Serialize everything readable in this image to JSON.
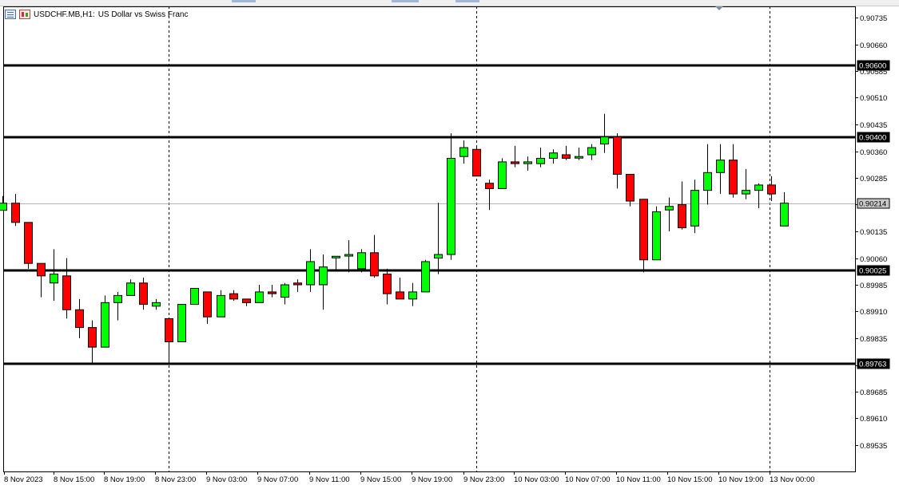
{
  "title": {
    "symbol": "USDCHF.MB,H1:",
    "description": "US Dollar vs Swiss Franc"
  },
  "icons": [
    "list-icon",
    "candlestick-icon",
    "scroll-marker-icon"
  ],
  "colors": {
    "background": "#ffffff",
    "bull": "#00ff00",
    "bear": "#ff0000",
    "wick": "#000000",
    "line": "#000000",
    "bid_line": "#b4b4b4"
  },
  "chart_data": {
    "type": "candlestick",
    "timeframe": "H1",
    "yticks": [
      "0.90735",
      "0.90660",
      "0.90585",
      "0.90510",
      "0.90435",
      "0.90360",
      "0.90285",
      "0.90210",
      "0.90135",
      "0.90060",
      "0.89985",
      "0.89910",
      "0.89835",
      "0.89760",
      "0.89685",
      "0.89610",
      "0.89535"
    ],
    "xticks": [
      "8 Nov 2023",
      "8 Nov 15:00",
      "8 Nov 19:00",
      "8 Nov 23:00",
      "9 Nov 03:00",
      "9 Nov 07:00",
      "9 Nov 11:00",
      "9 Nov 15:00",
      "9 Nov 19:00",
      "9 Nov 23:00",
      "10 Nov 03:00",
      "10 Nov 07:00",
      "10 Nov 11:00",
      "10 Nov 15:00",
      "10 Nov 19:00",
      "13 Nov 00:00"
    ],
    "horizontal_lines": [
      {
        "price": 0.906,
        "label": "0.90600"
      },
      {
        "price": 0.904,
        "label": "0.90400"
      },
      {
        "price": 0.90025,
        "label": "0.90025"
      },
      {
        "price": 0.89763,
        "label": "0.89763"
      }
    ],
    "bid_line": {
      "price": 0.90214,
      "label": "0.90214"
    },
    "period_separators": [
      "8 Nov 23:00",
      "9 Nov 23:00",
      "13 Nov 00:00"
    ],
    "candles": [
      {
        "o": 0.90194,
        "h": 0.90234,
        "l": 0.90194,
        "c": 0.90214
      },
      {
        "o": 0.90214,
        "h": 0.9024,
        "l": 0.9015,
        "c": 0.9016
      },
      {
        "o": 0.9016,
        "h": 0.9016,
        "l": 0.9003,
        "c": 0.90045
      },
      {
        "o": 0.90045,
        "h": 0.90045,
        "l": 0.8995,
        "c": 0.9001
      },
      {
        "o": 0.8999,
        "h": 0.90085,
        "l": 0.8994,
        "c": 0.90015
      },
      {
        "o": 0.9001,
        "h": 0.9006,
        "l": 0.8989,
        "c": 0.89915
      },
      {
        "o": 0.89915,
        "h": 0.89945,
        "l": 0.89835,
        "c": 0.89865
      },
      {
        "o": 0.89865,
        "h": 0.89885,
        "l": 0.89765,
        "c": 0.8981
      },
      {
        "o": 0.8981,
        "h": 0.89955,
        "l": 0.8981,
        "c": 0.89935
      },
      {
        "o": 0.89935,
        "h": 0.89965,
        "l": 0.89885,
        "c": 0.89955
      },
      {
        "o": 0.89955,
        "h": 0.9,
        "l": 0.89955,
        "c": 0.8999
      },
      {
        "o": 0.8999,
        "h": 0.90005,
        "l": 0.89915,
        "c": 0.8993
      },
      {
        "o": 0.89925,
        "h": 0.89945,
        "l": 0.89915,
        "c": 0.89935
      },
      {
        "o": 0.8989,
        "h": 0.8989,
        "l": 0.8976,
        "c": 0.89825
      },
      {
        "o": 0.89825,
        "h": 0.8993,
        "l": 0.89825,
        "c": 0.8993
      },
      {
        "o": 0.8993,
        "h": 0.89975,
        "l": 0.8993,
        "c": 0.89975
      },
      {
        "o": 0.89965,
        "h": 0.89965,
        "l": 0.89875,
        "c": 0.89895
      },
      {
        "o": 0.89895,
        "h": 0.8997,
        "l": 0.89895,
        "c": 0.89955
      },
      {
        "o": 0.8996,
        "h": 0.8997,
        "l": 0.8994,
        "c": 0.89945
      },
      {
        "o": 0.89945,
        "h": 0.89945,
        "l": 0.89925,
        "c": 0.89935
      },
      {
        "o": 0.89935,
        "h": 0.89985,
        "l": 0.89935,
        "c": 0.89965
      },
      {
        "o": 0.89965,
        "h": 0.89985,
        "l": 0.8995,
        "c": 0.8996
      },
      {
        "o": 0.8995,
        "h": 0.8999,
        "l": 0.8993,
        "c": 0.89985
      },
      {
        "o": 0.8999,
        "h": 0.9,
        "l": 0.89965,
        "c": 0.89985
      },
      {
        "o": 0.89985,
        "h": 0.90085,
        "l": 0.89965,
        "c": 0.9005
      },
      {
        "o": 0.89985,
        "h": 0.9007,
        "l": 0.89915,
        "c": 0.90035
      },
      {
        "o": 0.90065,
        "h": 0.90065,
        "l": 0.90025,
        "c": 0.90065
      },
      {
        "o": 0.9007,
        "h": 0.9011,
        "l": 0.9002,
        "c": 0.9007
      },
      {
        "o": 0.9003,
        "h": 0.90085,
        "l": 0.9002,
        "c": 0.90075
      },
      {
        "o": 0.90075,
        "h": 0.90125,
        "l": 0.90005,
        "c": 0.9001
      },
      {
        "o": 0.90015,
        "h": 0.9003,
        "l": 0.8993,
        "c": 0.8996
      },
      {
        "o": 0.89965,
        "h": 0.90005,
        "l": 0.8995,
        "c": 0.89945
      },
      {
        "o": 0.89945,
        "h": 0.8999,
        "l": 0.89925,
        "c": 0.89965
      },
      {
        "o": 0.89965,
        "h": 0.90055,
        "l": 0.89965,
        "c": 0.9005
      },
      {
        "o": 0.9006,
        "h": 0.90215,
        "l": 0.90015,
        "c": 0.9007
      },
      {
        "o": 0.9007,
        "h": 0.9041,
        "l": 0.90055,
        "c": 0.9034
      },
      {
        "o": 0.90345,
        "h": 0.9039,
        "l": 0.90325,
        "c": 0.9037
      },
      {
        "o": 0.90365,
        "h": 0.90375,
        "l": 0.9029,
        "c": 0.9029
      },
      {
        "o": 0.9027,
        "h": 0.9028,
        "l": 0.90195,
        "c": 0.90255
      },
      {
        "o": 0.90255,
        "h": 0.9034,
        "l": 0.90255,
        "c": 0.9033
      },
      {
        "o": 0.9033,
        "h": 0.90375,
        "l": 0.90315,
        "c": 0.90325
      },
      {
        "o": 0.90325,
        "h": 0.90345,
        "l": 0.90305,
        "c": 0.9033
      },
      {
        "o": 0.90325,
        "h": 0.9037,
        "l": 0.90315,
        "c": 0.9034
      },
      {
        "o": 0.9034,
        "h": 0.90365,
        "l": 0.90325,
        "c": 0.90355
      },
      {
        "o": 0.9035,
        "h": 0.90375,
        "l": 0.90335,
        "c": 0.9034
      },
      {
        "o": 0.90345,
        "h": 0.9037,
        "l": 0.90335,
        "c": 0.90345
      },
      {
        "o": 0.9035,
        "h": 0.9038,
        "l": 0.90335,
        "c": 0.9037
      },
      {
        "o": 0.9038,
        "h": 0.90465,
        "l": 0.90355,
        "c": 0.904
      },
      {
        "o": 0.904,
        "h": 0.9041,
        "l": 0.90255,
        "c": 0.90295
      },
      {
        "o": 0.90295,
        "h": 0.90295,
        "l": 0.90205,
        "c": 0.9022
      },
      {
        "o": 0.90225,
        "h": 0.90225,
        "l": 0.9002,
        "c": 0.90055
      },
      {
        "o": 0.90055,
        "h": 0.90205,
        "l": 0.90055,
        "c": 0.9019
      },
      {
        "o": 0.90195,
        "h": 0.9023,
        "l": 0.90135,
        "c": 0.90205
      },
      {
        "o": 0.9021,
        "h": 0.90275,
        "l": 0.9014,
        "c": 0.90145
      },
      {
        "o": 0.9015,
        "h": 0.9028,
        "l": 0.9013,
        "c": 0.9025
      },
      {
        "o": 0.9025,
        "h": 0.9038,
        "l": 0.9021,
        "c": 0.903
      },
      {
        "o": 0.903,
        "h": 0.9038,
        "l": 0.9024,
        "c": 0.90335
      },
      {
        "o": 0.90335,
        "h": 0.9038,
        "l": 0.9023,
        "c": 0.9024
      },
      {
        "o": 0.9024,
        "h": 0.9031,
        "l": 0.90225,
        "c": 0.9025
      },
      {
        "o": 0.9025,
        "h": 0.9027,
        "l": 0.902,
        "c": 0.90265
      },
      {
        "o": 0.90265,
        "h": 0.9029,
        "l": 0.9022,
        "c": 0.9024
      },
      {
        "o": 0.9015,
        "h": 0.90245,
        "l": 0.9015,
        "c": 0.90214
      }
    ]
  }
}
